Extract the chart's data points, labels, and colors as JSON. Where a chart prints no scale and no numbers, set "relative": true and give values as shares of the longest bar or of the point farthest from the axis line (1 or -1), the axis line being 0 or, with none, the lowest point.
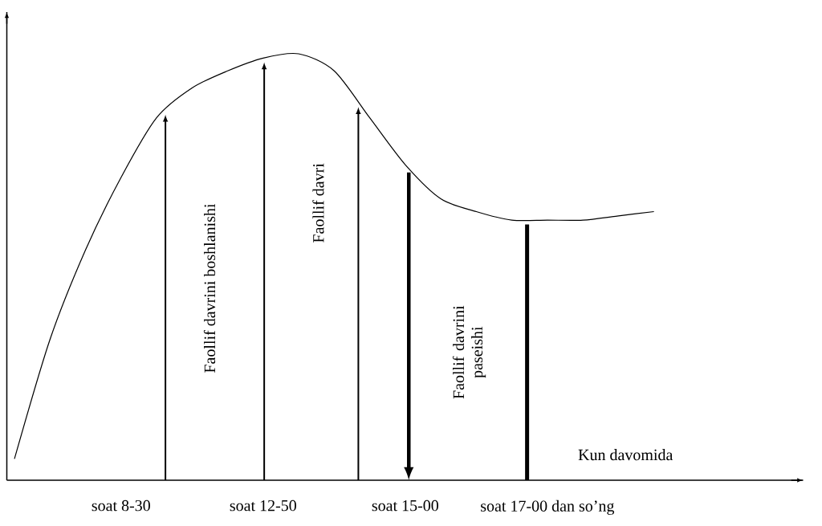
{
  "chart_data": {
    "type": "line",
    "relative": true,
    "color": "#000000",
    "categories": [
      null,
      null,
      null,
      "soat 8-30",
      null,
      null,
      null,
      "soat 12-50",
      null,
      null,
      null,
      "soat 15-00",
      null,
      null,
      null,
      "soat 17-00 dan so’ng",
      null,
      null,
      null
    ],
    "values": [
      0.05,
      0.33,
      0.54,
      0.71,
      0.85,
      0.92,
      0.96,
      0.99,
      1.0,
      0.96,
      0.85,
      0.74,
      0.66,
      0.63,
      0.61,
      0.61,
      0.61,
      0.62,
      0.63
    ],
    "annotations": [
      "Faollif davrini boshlanishi",
      "Faollif davri",
      "Faollif davrini paseishi",
      "Kun davomida"
    ]
  }
}
